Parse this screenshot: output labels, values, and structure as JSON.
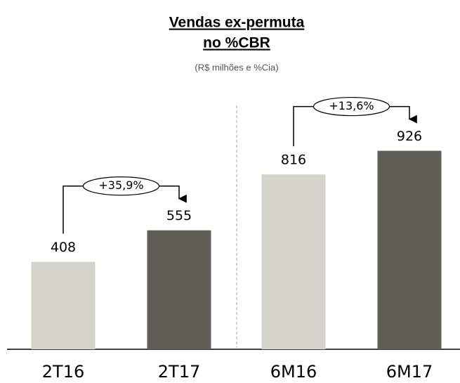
{
  "chart_data": {
    "type": "bar",
    "title": [
      "Vendas ex-permuta",
      "no %CBR"
    ],
    "subtitle": "(R$ milhões e %Cia)",
    "categories": [
      "2T16",
      "2T17",
      "6M16",
      "6M17"
    ],
    "values": [
      408,
      555,
      816,
      926
    ],
    "colors": [
      "#d4d4cc",
      "#5f5f57",
      "#d4d4cc",
      "#5f5f57"
    ],
    "annotations": [
      "+35,9%",
      "+13,6%"
    ]
  }
}
